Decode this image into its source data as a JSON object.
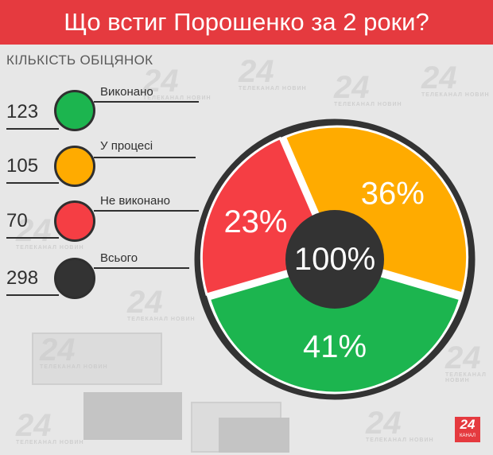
{
  "header": {
    "title": "Що встиг Порошенко за 2 роки?"
  },
  "subtitle": "КІЛЬКІСТЬ ОБІЦЯНОК",
  "legend": [
    {
      "value": "123",
      "label": "Виконано",
      "color": "#1cb54f"
    },
    {
      "value": "105",
      "label": "У процесі",
      "color": "#ffab00"
    },
    {
      "value": "70",
      "label": "Не виконано",
      "color": "#f53e44"
    },
    {
      "value": "298",
      "label": "Всього",
      "color": "#333333"
    }
  ],
  "chart_data": {
    "type": "pie",
    "center_label": "100%",
    "slices": [
      {
        "name": "Виконано",
        "percent": 41,
        "label": "41%",
        "color": "#1cb54f"
      },
      {
        "name": "Не виконано",
        "percent": 23,
        "label": "23%",
        "color": "#f53e44"
      },
      {
        "name": "У процесі",
        "percent": 36,
        "label": "36%",
        "color": "#ffab00"
      }
    ]
  },
  "watermark": {
    "number": "24",
    "caption": "ТЕЛЕКАНАЛ НОВИН"
  },
  "logo": {
    "number": "24",
    "caption": "КАНАЛ"
  }
}
